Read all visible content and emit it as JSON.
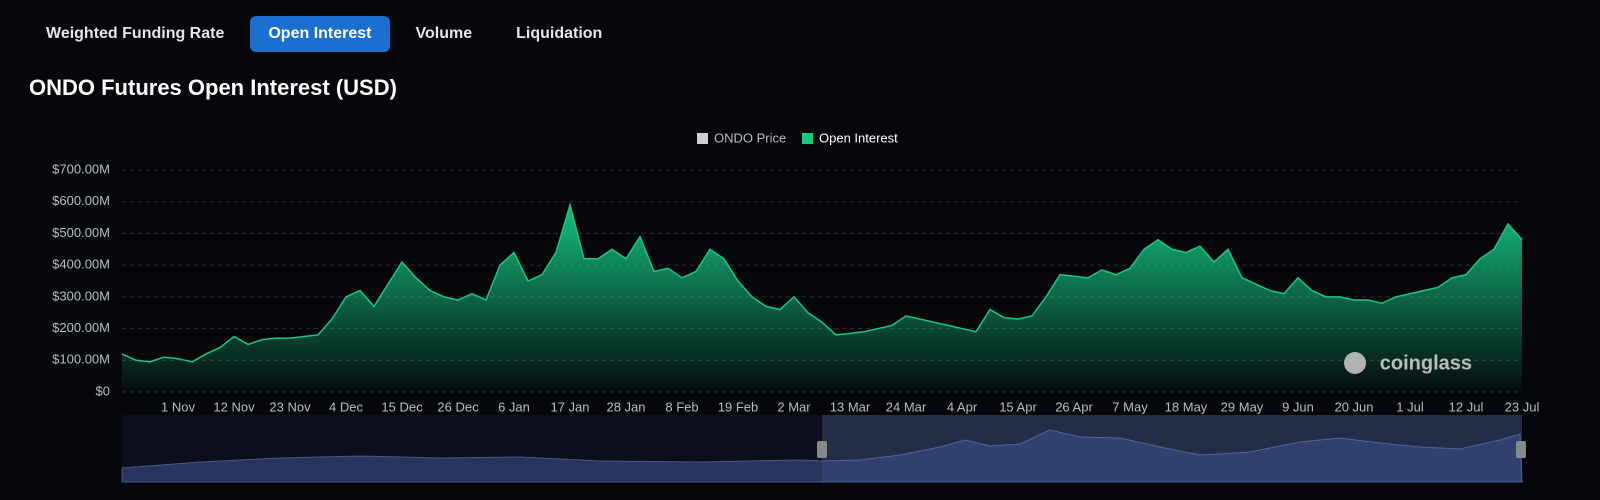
{
  "tabs": [
    "Weighted Funding Rate",
    "Open Interest",
    "Volume",
    "Liquidation"
  ],
  "active_tab": 1,
  "watermark": "coinglass",
  "chart_data": {
    "type": "area",
    "title": "ONDO Futures Open Interest (USD)",
    "hidden_series": [
      {
        "name": "ONDO Price",
        "color": "#cfcfcf"
      }
    ],
    "categories": [
      null,
      null,
      null,
      null,
      "1 Nov",
      null,
      null,
      null,
      "12 Nov",
      null,
      null,
      null,
      "23 Nov",
      null,
      null,
      null,
      "4 Dec",
      null,
      null,
      null,
      "15 Dec",
      null,
      null,
      null,
      "26 Dec",
      null,
      null,
      null,
      "6 Jan",
      null,
      null,
      null,
      "17 Jan",
      null,
      null,
      null,
      "28 Jan",
      null,
      null,
      null,
      "8 Feb",
      null,
      null,
      null,
      "19 Feb",
      null,
      null,
      null,
      "2 Mar",
      null,
      null,
      null,
      "13 Mar",
      null,
      null,
      null,
      "24 Mar",
      null,
      null,
      null,
      "4 Apr",
      null,
      null,
      null,
      "15 Apr",
      null,
      null,
      null,
      "26 Apr",
      null,
      null,
      null,
      "7 May",
      null,
      null,
      null,
      "18 May",
      null,
      null,
      null,
      "29 May",
      null,
      null,
      null,
      "9 Jun",
      null,
      null,
      null,
      "20 Jun",
      null,
      null,
      null,
      "1 Jul",
      null,
      null,
      null,
      "12 Jul",
      null,
      null,
      null,
      "23 Jul"
    ],
    "series": [
      {
        "name": "Open Interest",
        "color": "#16c784",
        "values": [
          120,
          100,
          95,
          110,
          105,
          95,
          120,
          140,
          175,
          150,
          165,
          170,
          170,
          175,
          180,
          230,
          300,
          320,
          270,
          340,
          410,
          360,
          320,
          300,
          290,
          310,
          290,
          400,
          440,
          350,
          370,
          440,
          590,
          420,
          420,
          450,
          420,
          490,
          380,
          390,
          360,
          380,
          450,
          420,
          350,
          300,
          270,
          260,
          300,
          250,
          220,
          180,
          185,
          190,
          200,
          210,
          240,
          230,
          220,
          210,
          200,
          190,
          260,
          235,
          230,
          240,
          300,
          370,
          365,
          360,
          385,
          370,
          390,
          450,
          480,
          450,
          440,
          460,
          410,
          450,
          360,
          340,
          320,
          310,
          360,
          320,
          300,
          300,
          290,
          290,
          280,
          300,
          310,
          320,
          330,
          360,
          370,
          420,
          450,
          530,
          480
        ]
      }
    ],
    "ylim": [
      0,
      700
    ],
    "yticks": [
      {
        "value": 0,
        "label": "$0"
      },
      {
        "value": 100,
        "label": "$100.00M"
      },
      {
        "value": 200,
        "label": "$200.00M"
      },
      {
        "value": 300,
        "label": "$300.00M"
      },
      {
        "value": 400,
        "label": "$400.00M"
      },
      {
        "value": 500,
        "label": "$500.00M"
      },
      {
        "value": 600,
        "label": "$600.00M"
      },
      {
        "value": 700,
        "label": "$700.00M"
      }
    ],
    "grid": true
  }
}
